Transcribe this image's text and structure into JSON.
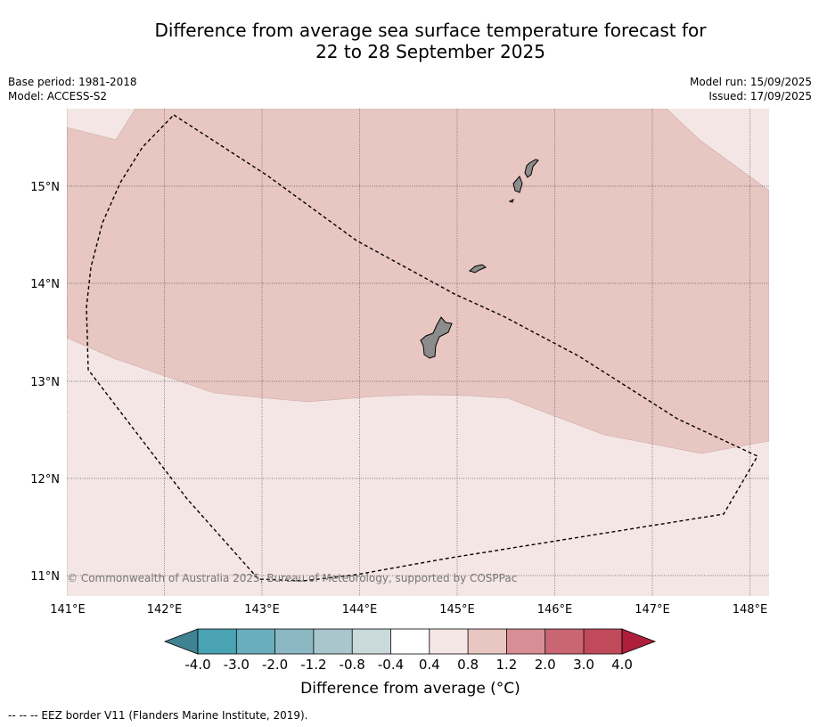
{
  "title": {
    "line1": "Difference from average sea surface temperature forecast for",
    "line2": "22 to 28 September 2025"
  },
  "meta": {
    "base_period": "Base period: 1981-2018",
    "model": "Model: ACCESS-S2",
    "model_run": "Model run: 15/09/2025",
    "issued": "Issued: 17/09/2025"
  },
  "map": {
    "lon_range": [
      141,
      148.2
    ],
    "lat_range": [
      10.8,
      15.8
    ],
    "lon_ticks": [
      "141°E",
      "142°E",
      "143°E",
      "144°E",
      "145°E",
      "146°E",
      "147°E",
      "148°E"
    ],
    "lat_ticks": [
      "11°N",
      "12°N",
      "13°N",
      "14°N",
      "15°N"
    ],
    "copyright": "© Commonwealth of Australia 2025, Bureau of Meteorology, supported by COSPPac",
    "colors": {
      "anomaly_0_4_to_0_8": "#f4e6e5",
      "anomaly_0_8_to_1_2": "#e8c6c1",
      "land": "#8c8c8c",
      "eez_line": "#000000"
    }
  },
  "colorbar": {
    "title": "Difference from average (°C)",
    "labels": [
      "-4.0",
      "-3.0",
      "-2.0",
      "-1.2",
      "-0.8",
      "-0.4",
      "0.4",
      "0.8",
      "1.2",
      "2.0",
      "3.0",
      "4.0"
    ],
    "colors": [
      "#3f8291",
      "#4aa3b3",
      "#6aadbc",
      "#8bb8c3",
      "#a8c6cb",
      "#cad9da",
      "#ffffff",
      "#f4e6e5",
      "#e8c6c1",
      "#d88e96",
      "#ca6672",
      "#c14a5a",
      "#ae1f3c"
    ]
  },
  "footer": "--  --  -- EEZ border V11 (Flanders Marine Institute, 2019)."
}
